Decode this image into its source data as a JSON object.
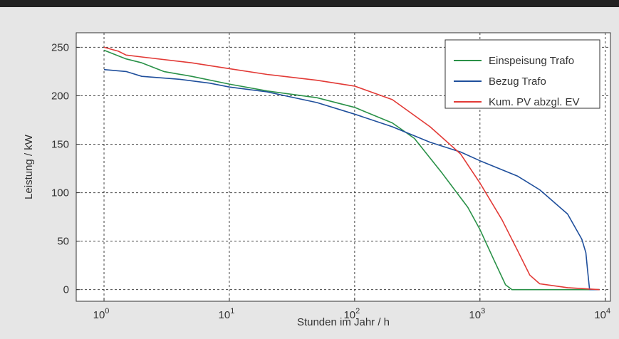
{
  "chart_data": {
    "type": "line",
    "xlabel": "Stunden im Jahr / h",
    "ylabel": "Leistung / kW",
    "xscale": "log",
    "xlim": [
      0.6,
      11000
    ],
    "ylim": [
      -12,
      265
    ],
    "grid": true,
    "legend_position": "top-right",
    "x_ticks": [
      {
        "value": 1,
        "base": "10",
        "exp": "0"
      },
      {
        "value": 10,
        "base": "10",
        "exp": "1"
      },
      {
        "value": 100,
        "base": "10",
        "exp": "2"
      },
      {
        "value": 1000,
        "base": "10",
        "exp": "3"
      },
      {
        "value": 10000,
        "base": "10",
        "exp": "4"
      }
    ],
    "y_ticks": [
      0,
      50,
      100,
      150,
      200,
      250
    ],
    "series": [
      {
        "name": "Einspeisung Trafo",
        "color": "#2a9148",
        "points": [
          [
            1,
            247
          ],
          [
            1.5,
            238
          ],
          [
            2,
            234
          ],
          [
            3,
            225
          ],
          [
            5,
            220
          ],
          [
            10,
            212
          ],
          [
            20,
            205
          ],
          [
            50,
            198
          ],
          [
            100,
            188
          ],
          [
            200,
            172
          ],
          [
            300,
            156
          ],
          [
            500,
            120
          ],
          [
            800,
            85
          ],
          [
            1000,
            62
          ],
          [
            1300,
            30
          ],
          [
            1600,
            5
          ],
          [
            1800,
            0
          ],
          [
            9000,
            0
          ]
        ]
      },
      {
        "name": "Bezug Trafo",
        "color": "#1f4f9c",
        "points": [
          [
            1,
            227
          ],
          [
            1.5,
            225
          ],
          [
            2,
            220
          ],
          [
            4,
            217
          ],
          [
            7,
            213
          ],
          [
            10,
            209
          ],
          [
            20,
            204
          ],
          [
            50,
            193
          ],
          [
            100,
            181
          ],
          [
            200,
            168
          ],
          [
            400,
            152
          ],
          [
            700,
            142
          ],
          [
            1000,
            133
          ],
          [
            2000,
            117
          ],
          [
            3000,
            103
          ],
          [
            5000,
            78
          ],
          [
            6500,
            52
          ],
          [
            7000,
            38
          ],
          [
            7200,
            22
          ],
          [
            7500,
            0
          ],
          [
            9000,
            0
          ]
        ]
      },
      {
        "name": "Kum. PV abzgl. EV",
        "color": "#e23a36",
        "points": [
          [
            1,
            250
          ],
          [
            1.3,
            246
          ],
          [
            1.5,
            242
          ],
          [
            2,
            240
          ],
          [
            5,
            234
          ],
          [
            10,
            228
          ],
          [
            20,
            222
          ],
          [
            50,
            216
          ],
          [
            100,
            210
          ],
          [
            200,
            196
          ],
          [
            400,
            168
          ],
          [
            700,
            140
          ],
          [
            1000,
            110
          ],
          [
            1500,
            72
          ],
          [
            2000,
            40
          ],
          [
            2500,
            15
          ],
          [
            3000,
            6
          ],
          [
            5000,
            2
          ],
          [
            9000,
            0
          ]
        ]
      }
    ]
  }
}
